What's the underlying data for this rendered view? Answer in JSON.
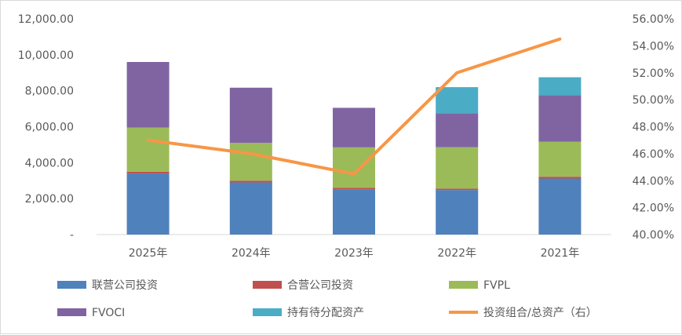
{
  "chart_data": {
    "type": "bar",
    "stacked": true,
    "categories": [
      "2025年",
      "2024年",
      "2023年",
      "2022年",
      "2021年"
    ],
    "series": [
      {
        "name": "联营公司投资",
        "type": "bar",
        "color": "#4f81bd",
        "values": [
          3400,
          2900,
          2500,
          2480,
          3120
        ]
      },
      {
        "name": "合营公司投资",
        "type": "bar",
        "color": "#c0504d",
        "values": [
          100,
          100,
          100,
          80,
          100
        ]
      },
      {
        "name": "FVPL",
        "type": "bar",
        "color": "#9bbb59",
        "values": [
          2450,
          2100,
          2250,
          2300,
          1950
        ]
      },
      {
        "name": "FVOCI",
        "type": "bar",
        "color": "#8064a2",
        "values": [
          3650,
          3070,
          2200,
          1890,
          2580
        ]
      },
      {
        "name": "持有待分配资产",
        "type": "bar",
        "color": "#4bacc6",
        "values": [
          0,
          0,
          0,
          1450,
          1000
        ]
      },
      {
        "name": "投资组合/总资产（右）",
        "type": "line",
        "axis": "right",
        "color": "#f79646",
        "values": [
          47.0,
          46.0,
          44.5,
          52.0,
          54.5
        ]
      }
    ],
    "y_left": {
      "min": 0,
      "max": 12000,
      "step": 2000,
      "tick_labels": [
        "-",
        "2,000.00",
        "4,000.00",
        "6,000.00",
        "8,000.00",
        "10,000.00",
        "12,000.00"
      ]
    },
    "y_right": {
      "min": 40,
      "max": 56,
      "step": 2,
      "tick_labels": [
        "40.00%",
        "42.00%",
        "44.00%",
        "46.00%",
        "48.00%",
        "50.00%",
        "52.00%",
        "54.00%",
        "56.00%"
      ]
    },
    "grid": false,
    "legend_position": "bottom"
  }
}
